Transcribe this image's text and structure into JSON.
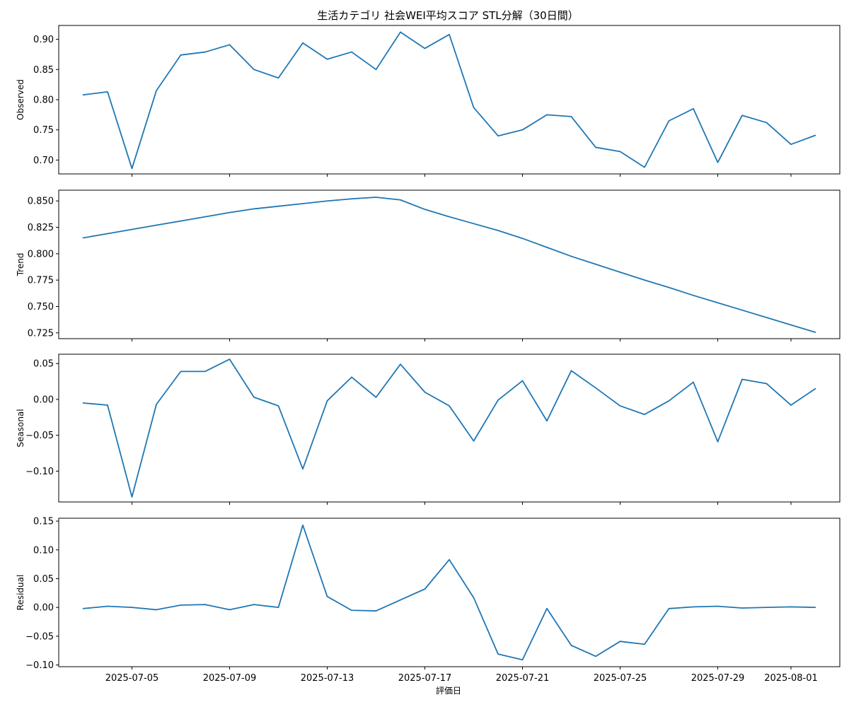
{
  "title": "生活カテゴリ 社会WEI平均スコア STL分解（30日間）",
  "xlabel": "評価日",
  "line_color": "#1f77b4",
  "chart_data": {
    "type": "line",
    "x": [
      "2025-07-03",
      "2025-07-04",
      "2025-07-05",
      "2025-07-06",
      "2025-07-07",
      "2025-07-08",
      "2025-07-09",
      "2025-07-10",
      "2025-07-11",
      "2025-07-12",
      "2025-07-13",
      "2025-07-14",
      "2025-07-15",
      "2025-07-16",
      "2025-07-17",
      "2025-07-18",
      "2025-07-19",
      "2025-07-20",
      "2025-07-21",
      "2025-07-22",
      "2025-07-23",
      "2025-07-24",
      "2025-07-25",
      "2025-07-26",
      "2025-07-27",
      "2025-07-28",
      "2025-07-29",
      "2025-07-30",
      "2025-07-31",
      "2025-08-01",
      "2025-08-02"
    ],
    "x_ticks": [
      "2025-07-05",
      "2025-07-09",
      "2025-07-13",
      "2025-07-17",
      "2025-07-21",
      "2025-07-25",
      "2025-07-29",
      "2025-08-01"
    ],
    "x_range": [
      "2025-07-02",
      "2025-08-03"
    ],
    "panels": [
      {
        "name": "Observed",
        "ylabel": "Observed",
        "ylim": [
          0.677,
          0.923
        ],
        "yticks": [
          0.7,
          0.75,
          0.8,
          0.85,
          0.9
        ],
        "ytick_labels": [
          "0.70",
          "0.75",
          "0.80",
          "0.85",
          "0.90"
        ],
        "values": [
          0.808,
          0.813,
          0.686,
          0.815,
          0.874,
          0.879,
          0.891,
          0.85,
          0.836,
          0.894,
          0.867,
          0.879,
          0.85,
          0.912,
          0.885,
          0.908,
          0.787,
          0.74,
          0.75,
          0.775,
          0.772,
          0.721,
          0.714,
          0.688,
          0.765,
          0.785,
          0.696,
          0.774,
          0.762,
          0.726,
          0.741
        ]
      },
      {
        "name": "Trend",
        "ylabel": "Trend",
        "ylim": [
          0.7195,
          0.8602
        ],
        "yticks": [
          0.725,
          0.75,
          0.775,
          0.8,
          0.825,
          0.85
        ],
        "ytick_labels": [
          "0.725",
          "0.750",
          "0.775",
          "0.800",
          "0.825",
          "0.850"
        ],
        "values": [
          0.815,
          0.819,
          0.823,
          0.827,
          0.831,
          0.835,
          0.839,
          0.8425,
          0.845,
          0.8475,
          0.85,
          0.852,
          0.8535,
          0.851,
          0.842,
          0.835,
          0.8285,
          0.822,
          0.8145,
          0.806,
          0.7975,
          0.79,
          0.7825,
          0.775,
          0.768,
          0.7605,
          0.7535,
          0.7465,
          0.7395,
          0.7325,
          0.7255
        ]
      },
      {
        "name": "Seasonal",
        "ylabel": "Seasonal",
        "ylim": [
          -0.143,
          0.063
        ],
        "yticks": [
          -0.1,
          -0.05,
          0.0,
          0.05
        ],
        "ytick_labels": [
          "−0.10",
          "−0.05",
          "0.00",
          "0.05"
        ],
        "values": [
          -0.005,
          -0.008,
          -0.136,
          -0.007,
          0.039,
          0.039,
          0.056,
          0.003,
          -0.009,
          -0.097,
          -0.002,
          0.031,
          0.003,
          0.049,
          0.01,
          -0.009,
          -0.058,
          -0.001,
          0.026,
          -0.03,
          0.04,
          0.016,
          -0.009,
          -0.021,
          -0.002,
          0.024,
          -0.059,
          0.028,
          0.022,
          -0.008,
          0.015
        ]
      },
      {
        "name": "Residual",
        "ylabel": "Residual",
        "ylim": [
          -0.103,
          0.155
        ],
        "yticks": [
          -0.1,
          -0.05,
          0.0,
          0.05,
          0.1,
          0.15
        ],
        "ytick_labels": [
          "−0.10",
          "−0.05",
          "0.00",
          "0.05",
          "0.10",
          "0.15"
        ],
        "values": [
          -0.002,
          0.002,
          0.0,
          -0.004,
          0.004,
          0.005,
          -0.004,
          0.005,
          0.0,
          0.143,
          0.019,
          -0.005,
          -0.006,
          0.013,
          0.032,
          0.083,
          0.017,
          -0.081,
          -0.091,
          -0.002,
          -0.066,
          -0.085,
          -0.059,
          -0.064,
          -0.002,
          0.001,
          0.002,
          -0.001,
          0.0,
          0.001,
          0.0
        ]
      }
    ]
  }
}
